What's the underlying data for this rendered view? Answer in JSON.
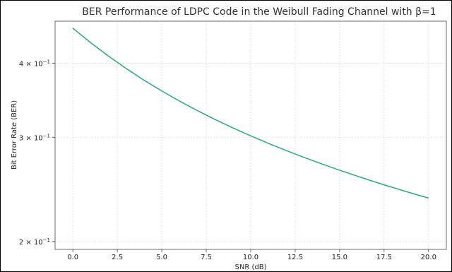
{
  "chart_data": {
    "type": "line",
    "title": "BER Performance of LDPC Code in the Weibull Fading Channel with β=1",
    "xlabel": "SNR (dB)",
    "ylabel": "Bit Error Rate (BER)",
    "x_ticks": [
      "0.0",
      "2.5",
      "5.0",
      "7.5",
      "10.0",
      "12.5",
      "15.0",
      "17.5",
      "20.0"
    ],
    "y_ticks": [
      {
        "value": 0.2,
        "base": "2",
        "exp": "−1"
      },
      {
        "value": 0.3,
        "base": "3",
        "exp": "−1"
      },
      {
        "value": 0.4,
        "base": "4",
        "exp": "−1"
      }
    ],
    "x_range": [
      -1,
      21
    ],
    "y_range": [
      0.194,
      0.471
    ],
    "y_scale": "log",
    "grid": true,
    "series": [
      {
        "color": "#2aa882",
        "x": [
          0,
          1,
          2,
          3,
          4,
          5,
          6,
          7,
          8,
          9,
          10,
          11,
          12,
          13,
          14,
          15,
          16,
          17,
          18,
          19,
          20
        ],
        "y": [
          0.4583,
          0.4333,
          0.4113,
          0.3918,
          0.3745,
          0.3591,
          0.3452,
          0.3327,
          0.3214,
          0.3111,
          0.3016,
          0.2929,
          0.2849,
          0.2774,
          0.2704,
          0.2639,
          0.2578,
          0.2521,
          0.2467,
          0.2416,
          0.2368
        ]
      }
    ]
  }
}
